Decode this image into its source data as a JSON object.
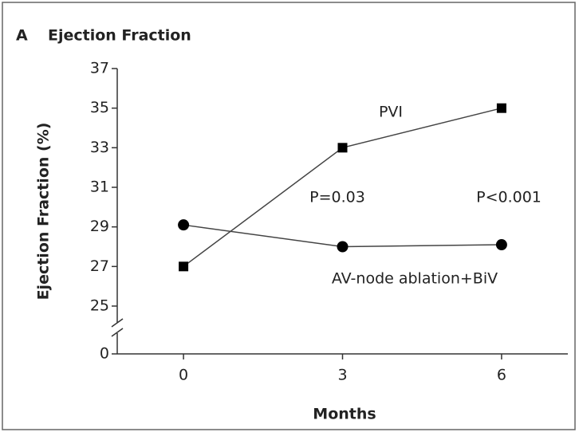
{
  "chart_data": {
    "type": "line",
    "panel_label": "A",
    "title": "Ejection Fraction",
    "x_label": "Months",
    "y_label": "Ejection Fraction (%)",
    "x": [
      0,
      3,
      6
    ],
    "series": [
      {
        "name": "PVI",
        "color": "#000000",
        "marker": "square",
        "values": [
          27,
          33,
          35
        ]
      },
      {
        "name": "AV-node ablation+BiV",
        "color": "#000000",
        "marker": "circle",
        "values": [
          29.1,
          28,
          28.1
        ]
      }
    ],
    "annotations": [
      "P=0.03",
      "P<0.001"
    ],
    "xlim": [
      -1.25,
      7.25
    ],
    "xticks": [
      0,
      3,
      6
    ],
    "ylim": [
      0,
      37
    ],
    "yticks": [
      0,
      25,
      27,
      29,
      31,
      33,
      35,
      37
    ],
    "y_break": [
      0,
      25
    ],
    "grid": false
  }
}
